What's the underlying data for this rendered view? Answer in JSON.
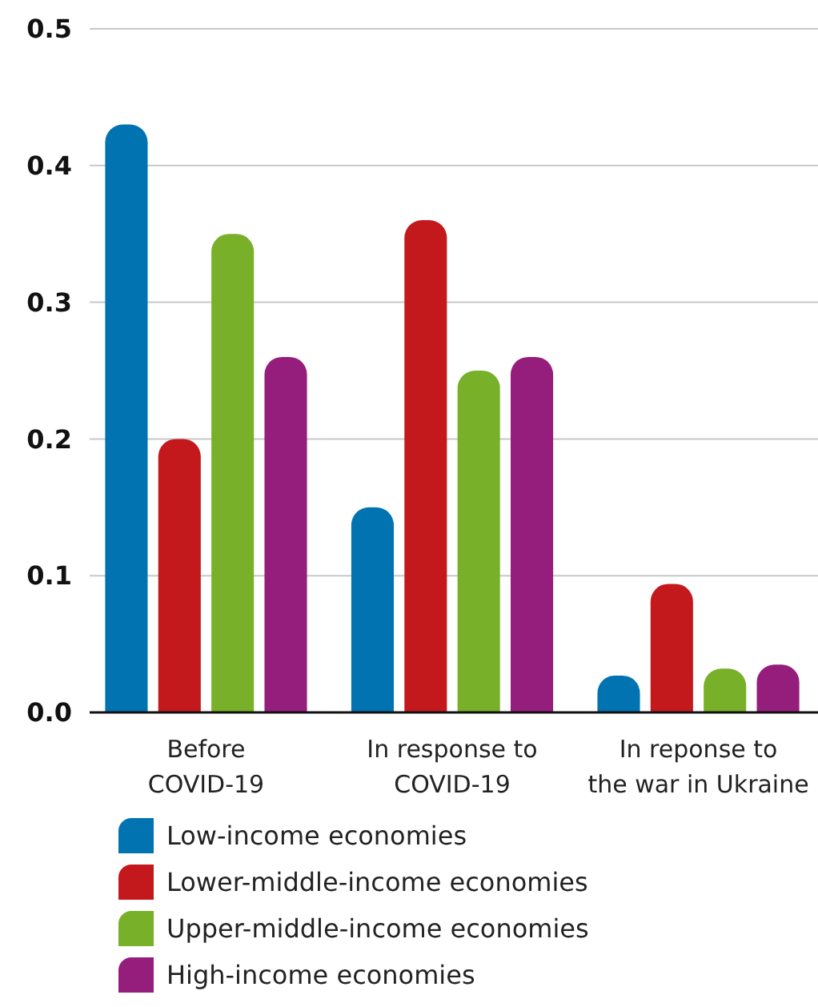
{
  "chart_data": {
    "type": "bar",
    "categories": [
      "Before\nCOVID-19",
      "In response to\nCOVID-19",
      "In reponse to\nthe war in Ukraine"
    ],
    "series": [
      {
        "name": "Low-income economies",
        "color": "#0073b0",
        "values": [
          0.43,
          0.15,
          0.027
        ]
      },
      {
        "name": "Lower-middle-income economies",
        "color": "#c4191c",
        "values": [
          0.2,
          0.36,
          0.094
        ]
      },
      {
        "name": "Upper-middle-income economies",
        "color": "#78b02a",
        "values": [
          0.35,
          0.25,
          0.032
        ]
      },
      {
        "name": "High-income economies",
        "color": "#951d7b",
        "values": [
          0.26,
          0.26,
          0.035
        ]
      }
    ],
    "ylim": [
      0,
      0.5
    ],
    "yticks": [
      {
        "value": 0,
        "label": "0.0"
      },
      0.1,
      0.2,
      0.3,
      0.4,
      0.5
    ],
    "grid": "y",
    "legend": "bottom"
  }
}
